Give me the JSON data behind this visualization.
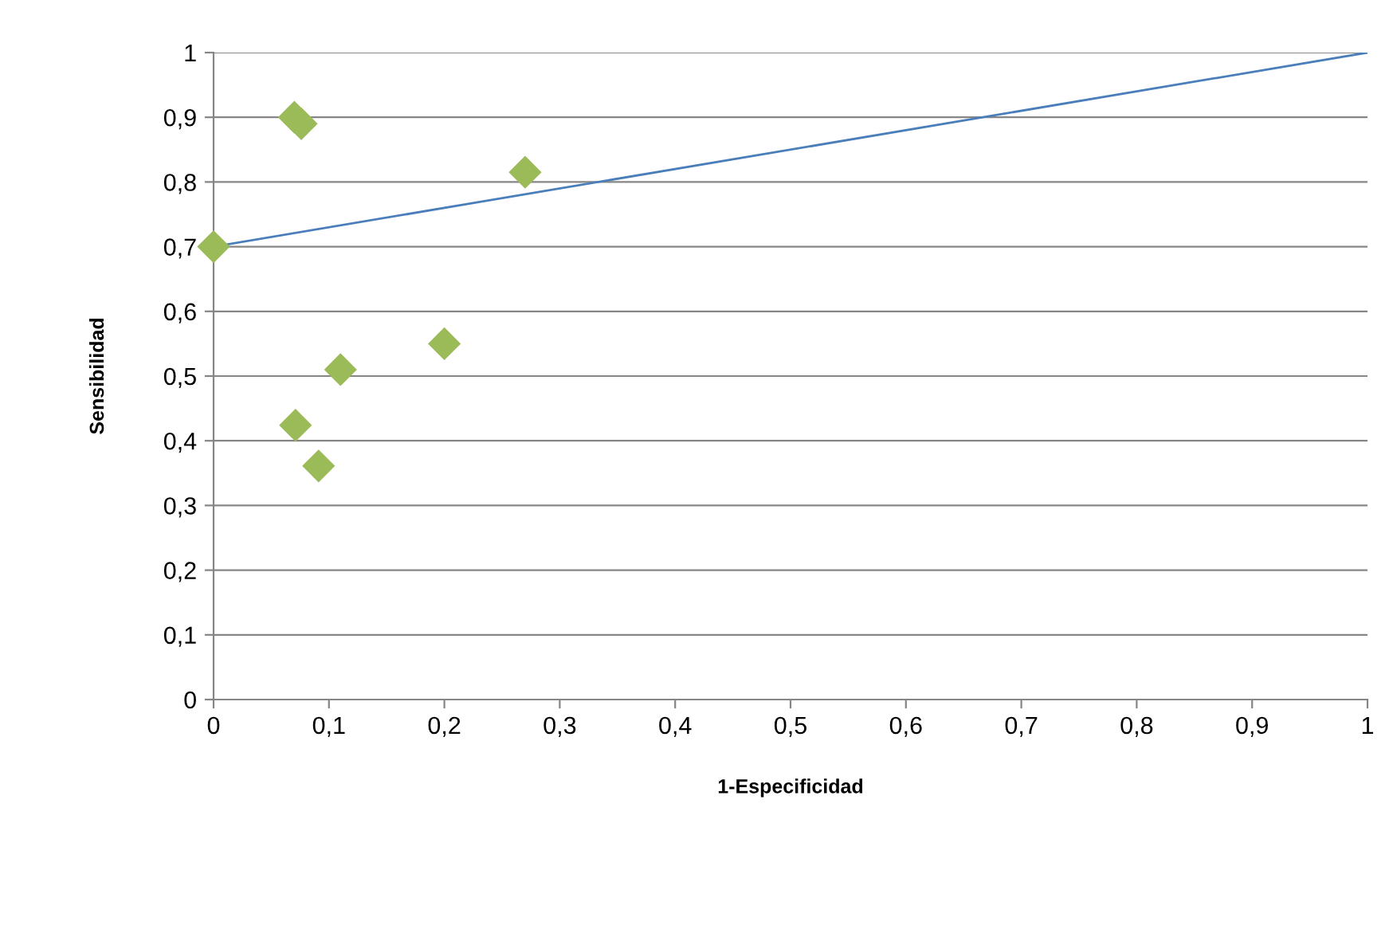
{
  "chart_data": {
    "type": "scatter",
    "xlabel": "1-Especificidad",
    "ylabel": "Sensibilidad",
    "xlim": [
      0,
      1
    ],
    "ylim": [
      0,
      1
    ],
    "xticks": [
      {
        "value": 0,
        "label": "0"
      },
      {
        "value": 0.1,
        "label": "0,1"
      },
      {
        "value": 0.2,
        "label": "0,2"
      },
      {
        "value": 0.3,
        "label": "0,3"
      },
      {
        "value": 0.4,
        "label": "0,4"
      },
      {
        "value": 0.5,
        "label": "0,5"
      },
      {
        "value": 0.6,
        "label": "0,6"
      },
      {
        "value": 0.7,
        "label": "0,7"
      },
      {
        "value": 0.8,
        "label": "0,8"
      },
      {
        "value": 0.9,
        "label": "0,9"
      },
      {
        "value": 1,
        "label": "1"
      }
    ],
    "yticks": [
      {
        "value": 0,
        "label": "0"
      },
      {
        "value": 0.1,
        "label": "0,1"
      },
      {
        "value": 0.2,
        "label": "0,2"
      },
      {
        "value": 0.3,
        "label": "0,3"
      },
      {
        "value": 0.4,
        "label": "0,4"
      },
      {
        "value": 0.5,
        "label": "0,5"
      },
      {
        "value": 0.6,
        "label": "0,6"
      },
      {
        "value": 0.7,
        "label": "0,7"
      },
      {
        "value": 0.8,
        "label": "0,8"
      },
      {
        "value": 0.9,
        "label": "0,9"
      },
      {
        "value": 1,
        "label": "1"
      }
    ],
    "grid": "y",
    "series": [
      {
        "marker": "diamond",
        "color": "#9bbb59",
        "x": [
          0,
          0.07,
          0.076,
          0.27,
          0.2,
          0.11,
          0.071,
          0.091
        ],
        "values": [
          0.7,
          0.9,
          0.89,
          0.815,
          0.55,
          0.51,
          0.424,
          0.361
        ]
      },
      {
        "type": "line",
        "marker": "none",
        "color": "#4a7ebb",
        "x": [
          0,
          1
        ],
        "values": [
          0.7,
          1
        ]
      }
    ]
  }
}
